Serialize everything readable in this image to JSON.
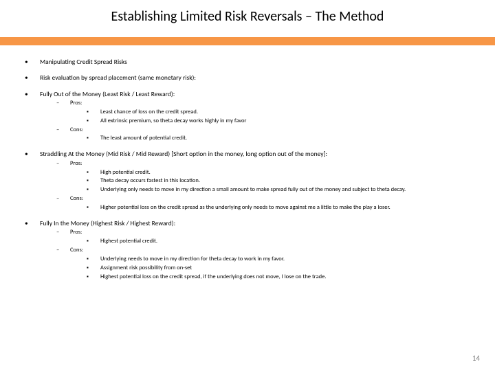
{
  "title": "Establishing Limited Risk Reversals – The Method",
  "accent_color": "#f79646",
  "page_number": "14",
  "bullets": {
    "b1": "Manipulating Credit Spread Risks",
    "b2": "Risk evaluation by spread placement (same monetary risk):",
    "b3": "Fully Out of the Money (Least Risk / Least Reward):",
    "b3_pros": "Pros:",
    "b3_p1": "Least chance of loss on the credit spread.",
    "b3_p2": "All extrinsic premium, so theta decay works highly in my favor",
    "b3_cons": "Cons:",
    "b3_c1": "The least amount of potential credit.",
    "b4": "Straddling At the Money (Mid Risk / Mid Reward) [Short option in the money, long option out of the money]:",
    "b4_pros": "Pros:",
    "b4_p1": "High potential credit.",
    "b4_p2": "Theta decay occurs fastest in this location.",
    "b4_p3": "Underlying only needs to move in my direction a small amount to make spread fully out of the money and subject to theta decay.",
    "b4_cons": "Cons:",
    "b4_c1": "Higher potential loss on the credit spread as the underlying only needs to move against me a little to make the play a loser.",
    "b5": "Fully In the Money (Highest Risk / Highest Reward):",
    "b5_pros": "Pros:",
    "b5_p1": "Highest potential credit.",
    "b5_cons": "Cons:",
    "b5_c1": "Underlying needs to move in my direction for theta decay to work in my favor.",
    "b5_c2": "Assignment risk possibility from on-set",
    "b5_c3": "Highest potential loss on the credit spread, if the underlying does not move, I lose on the trade."
  }
}
